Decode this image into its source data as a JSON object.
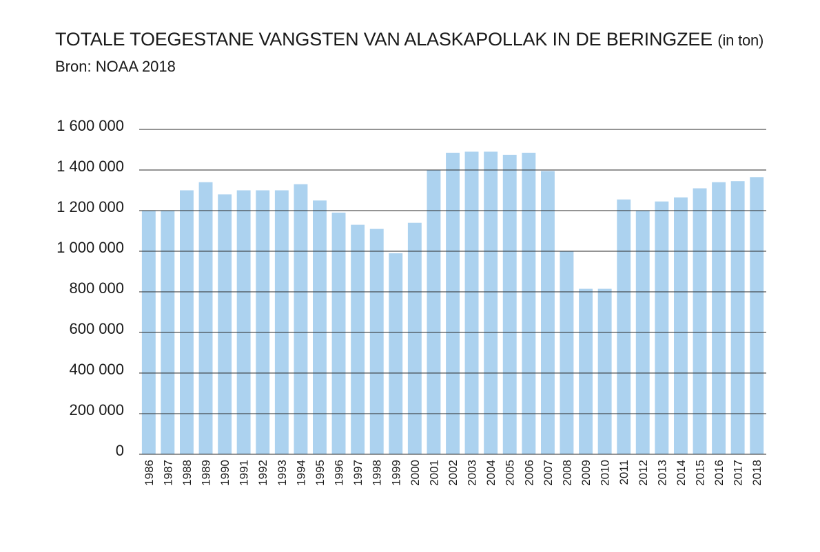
{
  "chart_data": {
    "type": "bar",
    "title": "TOTALE TOEGESTANE VANGSTEN VAN ALASKAPOLLAK IN DE BERINGZEE",
    "title_unit": "(in ton)",
    "subtitle": "Bron: NOAA 2018",
    "xlabel": "",
    "ylabel": "",
    "ylim": [
      0,
      1600000
    ],
    "yticks": [
      0,
      200000,
      400000,
      600000,
      800000,
      1000000,
      1200000,
      1400000,
      1600000
    ],
    "ytick_labels": [
      "0",
      "200 000",
      "400 000",
      "600 000",
      "800 000",
      "1 000 000",
      "1 200 000",
      "1 400 000",
      "1 600 000"
    ],
    "grid": true,
    "bar_color": "#acd2ef",
    "categories": [
      "1986",
      "1987",
      "1988",
      "1989",
      "1990",
      "1991",
      "1992",
      "1993",
      "1994",
      "1995",
      "1996",
      "1997",
      "1998",
      "1999",
      "2000",
      "2001",
      "2002",
      "2003",
      "2004",
      "2005",
      "2006",
      "2007",
      "2008",
      "2009",
      "2010",
      "2011",
      "2012",
      "2013",
      "2014",
      "2015",
      "2016",
      "2017",
      "2018"
    ],
    "values": [
      1200000,
      1200000,
      1300000,
      1340000,
      1280000,
      1300000,
      1300000,
      1300000,
      1330000,
      1250000,
      1190000,
      1130000,
      1110000,
      990000,
      1140000,
      1400000,
      1485000,
      1490000,
      1490000,
      1475000,
      1485000,
      1395000,
      1000000,
      815000,
      815000,
      1255000,
      1200000,
      1245000,
      1265000,
      1310000,
      1340000,
      1345000,
      1365000
    ]
  }
}
